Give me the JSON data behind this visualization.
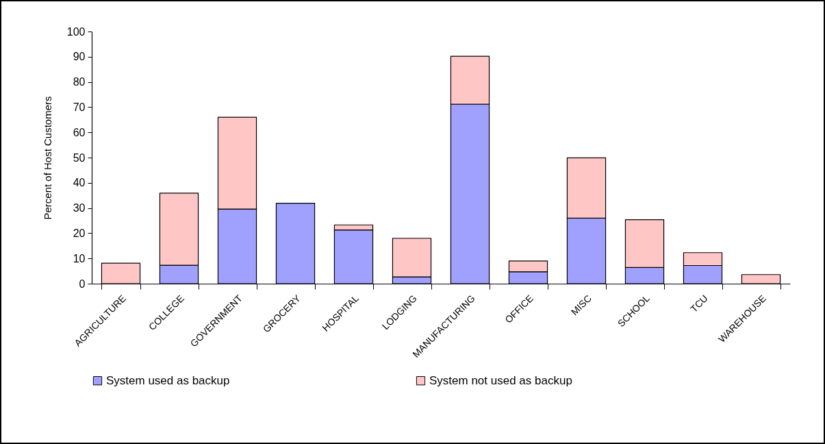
{
  "chart_data": {
    "type": "bar",
    "stacked": true,
    "ylabel": "Percent of Host Customers",
    "categories": [
      "AGRICULTURE",
      "COLLEGE",
      "GOVERNMENT",
      "GROCERY",
      "HOSPITAL",
      "LODGING",
      "MANUFACTURING",
      "OFFICE",
      "MISC",
      "SCHOOL",
      "TCU",
      "WAREHOUSE"
    ],
    "series": [
      {
        "name": "System used as backup",
        "color": "#a0a0ff",
        "values": [
          null,
          7.3,
          29.6,
          31.9,
          21.3,
          2.7,
          71.2,
          4.7,
          26.0,
          6.4,
          7.2,
          null
        ]
      },
      {
        "name": "System not used as backup",
        "color": "#ffc6c6",
        "values": [
          8.1,
          28.6,
          36.4,
          null,
          2.0,
          15.3,
          19.0,
          4.3,
          23.9,
          19.0,
          5.1,
          3.6
        ]
      }
    ],
    "ylim": [
      0,
      100
    ],
    "yticks": [
      0,
      10,
      20,
      30,
      40,
      50,
      60,
      70,
      80,
      90,
      100
    ],
    "grid": false,
    "legend": "bottom"
  }
}
